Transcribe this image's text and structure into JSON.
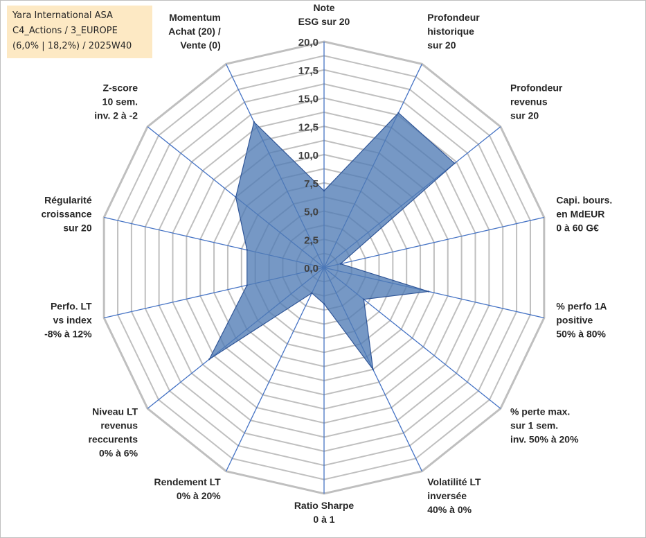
{
  "info": {
    "line1": "Yara International ASA",
    "line2": "C4_Actions / 3_EUROPE",
    "line3": "(6,0% | 18,2%) / 2025W40"
  },
  "colors": {
    "fill": "#4f7bb5",
    "stroke": "#2f5597",
    "grid": "#bfbfbf",
    "spoke": "#4472c4"
  },
  "chart_data": {
    "type": "radar",
    "title": "",
    "range": [
      0,
      20
    ],
    "ticks": [
      "0,0",
      "2,5",
      "5,0",
      "7,5",
      "10,0",
      "12,5",
      "15,0",
      "17,5",
      "20,0"
    ],
    "axes": [
      {
        "label": [
          "Note",
          "ESG sur 20"
        ],
        "value": 6.8
      },
      {
        "label": [
          "Profondeur",
          "historique",
          "sur 20"
        ],
        "value": 15.2
      },
      {
        "label": [
          "Profondeur",
          "revenus",
          "sur 20"
        ],
        "value": 14.8
      },
      {
        "label": [
          "Capi. bours.",
          "en MdEUR",
          "0 à 60 G€"
        ],
        "value": 1.5
      },
      {
        "label": [
          "% perfo 1A",
          "positive",
          "50% à 80%"
        ],
        "value": 9.5
      },
      {
        "label": [
          "% perte max.",
          "sur 1 sem.",
          "inv. 50% à 20%"
        ],
        "value": 4.5
      },
      {
        "label": [
          "Volatilité LT",
          "inversée",
          "40% à 0%"
        ],
        "value": 10.0
      },
      {
        "label": [
          "Ratio Sharpe",
          "0 à 1"
        ],
        "value": 3.2
      },
      {
        "label": [
          "Rendement LT",
          "0% à 20%"
        ],
        "value": 2.5
      },
      {
        "label": [
          "Niveau LT",
          "revenus",
          "reccurents",
          "0% à 6%"
        ],
        "value": 13.0
      },
      {
        "label": [
          "Perfo. LT",
          "vs index",
          "-8% à 12%"
        ],
        "value": 7.0
      },
      {
        "label": [
          "Régularité",
          "croissance",
          "sur 20"
        ],
        "value": 7.0
      },
      {
        "label": [
          "Z-score",
          "10 sem.",
          "inv. 2 à -2"
        ],
        "value": 10.0
      },
      {
        "label": [
          "Momentum",
          "Achat (20) /",
          "Vente (0)"
        ],
        "value": 14.3
      }
    ]
  }
}
